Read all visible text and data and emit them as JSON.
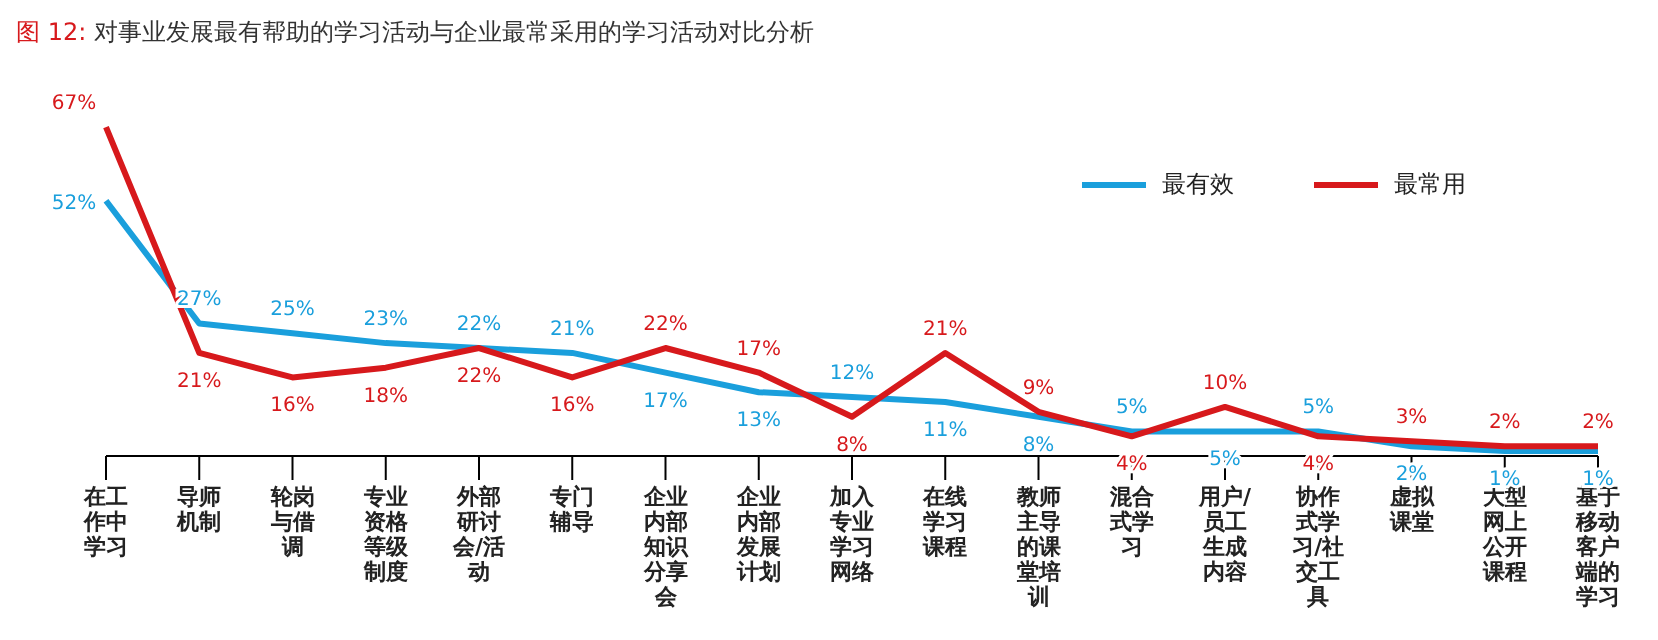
{
  "chart_data": {
    "type": "line",
    "title": "图 12: 对事业发展最有帮助的学习活动与企业最常采用的学习活动对比分析",
    "categories": [
      "在工作中学习",
      "导师机制",
      "轮岗与借调",
      "专业资格等级制度",
      "外部研讨会/活动",
      "专门辅导",
      "企业内部知识分享会",
      "企业内部发展计划",
      "加入专业学习网络",
      "在线学习课程",
      "教师主导的课堂培训",
      "混合式学习",
      "用户/员工生成内容",
      "协作式学习/社交工具",
      "虚拟课堂",
      "大型网上公开课程",
      "基于移动客户端的学习"
    ],
    "series": [
      {
        "name": "最有效",
        "color": "#1a9fdc",
        "values": [
          52,
          27,
          25,
          23,
          22,
          21,
          17,
          13,
          12,
          11,
          8,
          5,
          5,
          5,
          2,
          1,
          1
        ],
        "value_labels": [
          "52%",
          "27%",
          "25%",
          "23%",
          "22%",
          "21%",
          "17%",
          "13%",
          "12%",
          "11%",
          "8%",
          "5%",
          "5%",
          "5%",
          "2%",
          "1%",
          "1%"
        ]
      },
      {
        "name": "最常用",
        "color": "#d7191c",
        "values": [
          67,
          21,
          16,
          18,
          22,
          16,
          22,
          17,
          8,
          21,
          9,
          4,
          10,
          4,
          3,
          2,
          2
        ],
        "value_labels": [
          "67%",
          "21%",
          "16%",
          "18%",
          "22%",
          "16%",
          "22%",
          "17%",
          "8%",
          "21%",
          "9%",
          "4%",
          "10%",
          "4%",
          "3%",
          "2%",
          "2%"
        ]
      }
    ],
    "legend": "top right",
    "marker": "none",
    "line_style": "solid"
  }
}
